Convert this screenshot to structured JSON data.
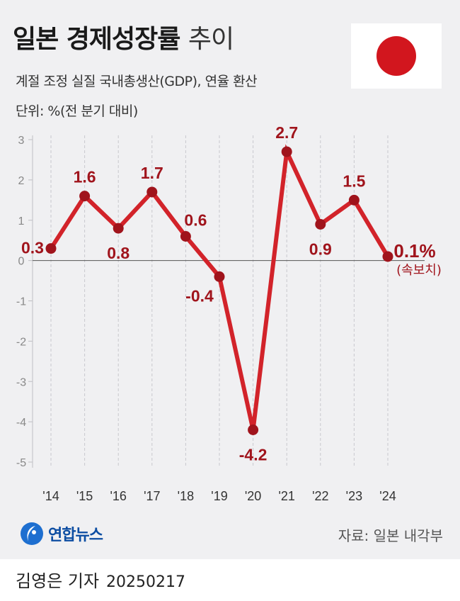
{
  "header": {
    "title_bold": "일본 경제성장률",
    "title_light": "추이",
    "subtitle": "계절 조정 실질 국내총생산(GDP), 연율 환산",
    "unit": "단위: %(전 분기 대비)"
  },
  "flag": {
    "name": "japan-flag",
    "sun_color": "#d2161e",
    "field_color": "#ffffff"
  },
  "chart_data": {
    "type": "line",
    "categories": [
      "'14",
      "'15",
      "'16",
      "'17",
      "'18",
      "'19",
      "'20",
      "'21",
      "'22",
      "'23",
      "'24"
    ],
    "values": [
      0.3,
      1.6,
      0.8,
      1.7,
      0.6,
      -0.4,
      -4.2,
      2.7,
      0.9,
      1.5,
      0.1
    ],
    "point_labels": [
      "0.3",
      "1.6",
      "0.8",
      "1.7",
      "0.6",
      "-0.4",
      "-4.2",
      "2.7",
      "0.9",
      "1.5",
      "0.1%"
    ],
    "final_note": "(속보치)",
    "ylim": [
      -5,
      3
    ],
    "yticks": [
      3,
      2,
      1,
      0,
      -1,
      -2,
      -3,
      -4,
      -5
    ],
    "grid": "vertical-dashed",
    "line_color": "#d2232a",
    "point_color": "#a0141c",
    "label_color": "#a0141c"
  },
  "footer": {
    "brand": "연합뉴스",
    "brand_icon": "yonhap-logo-icon",
    "source": "자료: 일본 내각부",
    "reporter": "김영은 기자",
    "date": "20250217"
  }
}
